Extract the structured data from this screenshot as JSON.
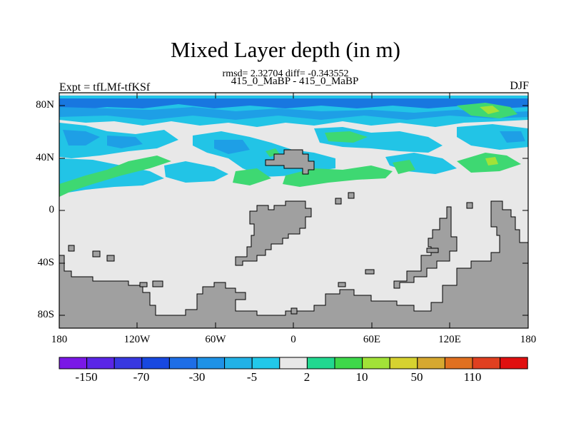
{
  "title": "Mixed Layer depth (in m)",
  "stats_line": "rmsd= 2.32704 diff= -0.343552",
  "subtitle": "415_0_MaBP - 415_0_MaBP",
  "experiment": "Expt = tfLMf-tfKSf",
  "season": "DJF",
  "colors": {
    "land": "#a0a0a0",
    "neutral": "#e8e8e8",
    "light_blue": "#22c4e6",
    "mid_blue": "#1e9fe6",
    "dark_blue": "#1877e0",
    "green": "#3ed872",
    "yellow_green": "#a2e238",
    "yellow": "#d8c820"
  },
  "axes": {
    "y_ticks": [
      "80N",
      "40N",
      "0",
      "40S",
      "80S"
    ],
    "x_ticks": [
      "180",
      "120W",
      "60W",
      "0",
      "60E",
      "120E",
      "180"
    ]
  },
  "colorbar": {
    "colors": [
      "#7a18e6",
      "#5a26e6",
      "#3838e0",
      "#1848e0",
      "#1e6ee6",
      "#1e92e6",
      "#22b2e6",
      "#22c8ea",
      "#e8e8e8",
      "#22d890",
      "#3ed84a",
      "#a2e238",
      "#d6d230",
      "#d6a830",
      "#e07020",
      "#e04020",
      "#e01010"
    ],
    "labels": [
      "-150",
      "-70",
      "-30",
      "-5",
      "2",
      "10",
      "50",
      "110"
    ]
  }
}
